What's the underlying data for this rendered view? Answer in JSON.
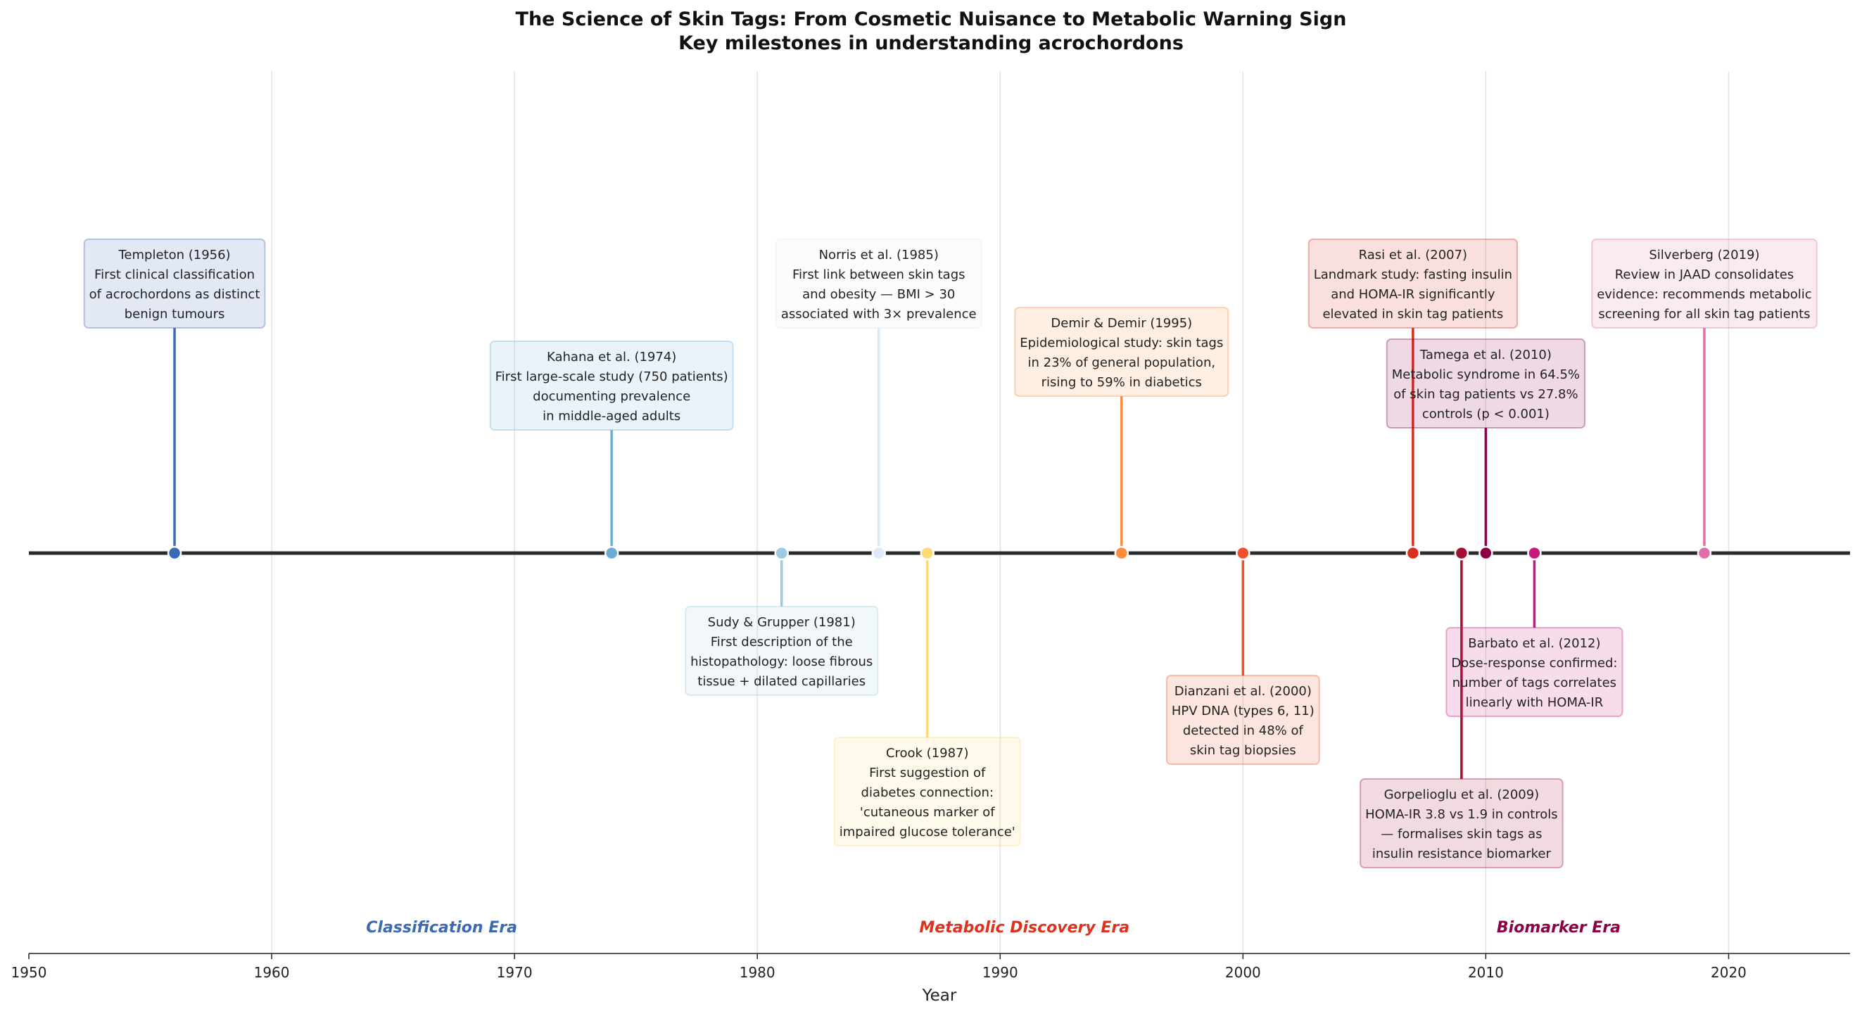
{
  "chart_data": {
    "type": "timeline",
    "title": "The Science of Skin Tags: From Cosmetic Nuisance to Metabolic Warning Sign",
    "subtitle": "Key milestones in understanding acrochordons",
    "xlabel": "Year",
    "xlim": [
      1950,
      2025
    ],
    "xticks": [
      1950,
      1960,
      1970,
      1980,
      1990,
      2000,
      2010,
      2020
    ],
    "grid": "vertical",
    "events": [
      {
        "year": 1956,
        "side": "above",
        "color": "#3a6ab3",
        "lines": [
          "Templeton (1956)",
          "First clinical classification",
          "of acrochordons as distinct",
          "benign tumours"
        ]
      },
      {
        "year": 1974,
        "side": "above",
        "color": "#6aaed6",
        "lines": [
          "Kahana et al. (1974)",
          "First large-scale study (750 patients)",
          "documenting prevalence",
          "in middle-aged adults"
        ]
      },
      {
        "year": 1981,
        "side": "below",
        "color": "#9ecae1",
        "lines": [
          "Sudy & Grupper (1981)",
          "First description of the",
          "histopathology: loose fibrous",
          "tissue + dilated capillaries"
        ]
      },
      {
        "year": 1985,
        "side": "above",
        "color": "#deebf7",
        "lines": [
          "Norris et al. (1985)",
          "First link between skin tags",
          "and obesity — BMI > 30",
          "associated with 3× prevalence"
        ]
      },
      {
        "year": 1987,
        "side": "below",
        "color": "#fed976",
        "lines": [
          "Crook (1987)",
          "First suggestion of",
          "diabetes connection:",
          "'cutaneous marker of",
          "impaired glucose tolerance'"
        ]
      },
      {
        "year": 1995,
        "side": "above",
        "color": "#fd8d3c",
        "lines": [
          "Demir & Demir (1995)",
          "Epidemiological study: skin tags",
          "in 23% of general population,",
          "rising to 59% in diabetics"
        ]
      },
      {
        "year": 2000,
        "side": "below",
        "color": "#f0502a",
        "lines": [
          "Dianzani et al. (2000)",
          "HPV DNA (types 6, 11)",
          "detected in 48% of",
          "skin tag biopsies"
        ]
      },
      {
        "year": 2007,
        "side": "above",
        "color": "#d7301f",
        "lines": [
          "Rasi et al. (2007)",
          "Landmark study: fasting insulin",
          "and HOMA-IR significantly",
          "elevated in skin tag patients"
        ]
      },
      {
        "year": 2009,
        "side": "below",
        "color": "#a50f32",
        "lines": [
          "Gorpelioglu et al. (2009)",
          "HOMA-IR 3.8 vs 1.9 in controls",
          "— formalises skin tags as",
          "insulin resistance biomarker"
        ]
      },
      {
        "year": 2010,
        "side": "above",
        "color": "#8b0047",
        "lines": [
          "Tamega et al. (2010)",
          "Metabolic syndrome in 64.5%",
          "of skin tag patients vs 27.8%",
          "controls (p < 0.001)"
        ]
      },
      {
        "year": 2012,
        "side": "below",
        "color": "#c7187f",
        "lines": [
          "Barbato et al. (2012)",
          "Dose-response confirmed:",
          "number of tags correlates",
          "linearly with HOMA-IR"
        ]
      },
      {
        "year": 2019,
        "side": "above",
        "color": "#de6fa8",
        "lines": [
          "Silverberg (2019)",
          "Review in JAAD consolidates",
          "evidence: recommends metabolic",
          "screening for all skin tag patients"
        ]
      }
    ],
    "eras": [
      {
        "label": "Classification Era",
        "year": 1967,
        "color": "#3a6ab3"
      },
      {
        "label": "Metabolic Discovery Era",
        "year": 1991,
        "color": "#e0301e"
      },
      {
        "label": "Biomarker Era",
        "year": 2013,
        "color": "#8b0047"
      }
    ]
  }
}
